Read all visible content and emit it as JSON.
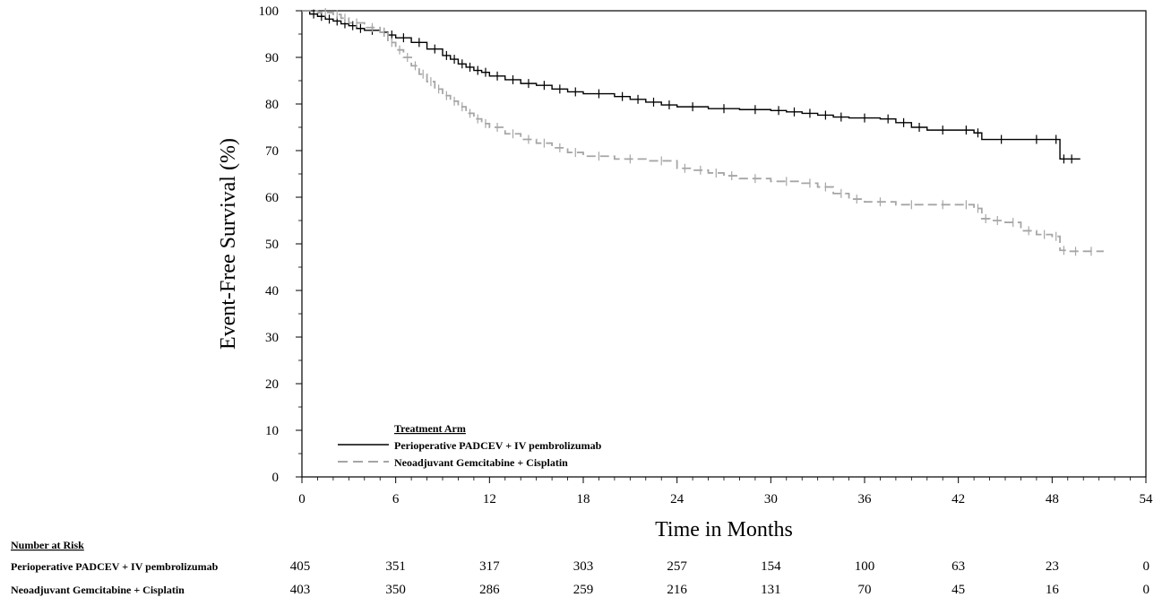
{
  "chart_data": {
    "type": "line",
    "xlabel": "Time in Months",
    "ylabel": "Event-Free Survival (%)",
    "xlim": [
      0,
      54
    ],
    "ylim": [
      0,
      100
    ],
    "xticks": [
      0,
      6,
      12,
      18,
      24,
      30,
      36,
      42,
      48,
      54
    ],
    "yticks": [
      0,
      10,
      20,
      30,
      40,
      50,
      60,
      70,
      80,
      90,
      100
    ],
    "grid": false,
    "legend": {
      "title": "Treatment Arm",
      "placement": "bottom-left"
    },
    "series": [
      {
        "name": "Perioperative PADCEV + IV pembrolizumab",
        "color": "#000000",
        "style": "solid",
        "step": true,
        "x": [
          0,
          0.5,
          1,
          1.5,
          2,
          2.5,
          3,
          3.5,
          4,
          5,
          5.5,
          6,
          7,
          8,
          9,
          9.5,
          10,
          10.5,
          11,
          11.5,
          12,
          13,
          14,
          15,
          16,
          17,
          18,
          20,
          21,
          22,
          23,
          24,
          26,
          28,
          30,
          31,
          32,
          33,
          34,
          35,
          37,
          38,
          39,
          40,
          42,
          43,
          43.5,
          46,
          48,
          48.5,
          49,
          49.5
        ],
        "y": [
          100,
          99.3,
          98.8,
          98.2,
          97.8,
          97.2,
          96.8,
          96.2,
          95.8,
          95.4,
          94.8,
          94.2,
          93.2,
          91.8,
          90.4,
          89.6,
          88.6,
          87.9,
          87.2,
          86.8,
          86.0,
          85.2,
          84.4,
          84.0,
          83.2,
          82.6,
          82.2,
          81.6,
          81.0,
          80.4,
          79.8,
          79.4,
          79.0,
          78.8,
          78.6,
          78.3,
          78.0,
          77.6,
          77.2,
          77.0,
          76.8,
          76.0,
          75.0,
          74.4,
          74.4,
          73.8,
          72.4,
          72.4,
          72.4,
          68.2,
          68.2,
          68.2
        ]
      },
      {
        "name": "Neoadjuvant Gemcitabine + Cisplatin",
        "color": "#a6a6a6",
        "style": "dashed",
        "step": true,
        "x": [
          0,
          1,
          2,
          2.5,
          3,
          4,
          5,
          5.5,
          6,
          6.5,
          7,
          7.5,
          8,
          8.5,
          9,
          9.5,
          10,
          10.5,
          11,
          11.5,
          12,
          13,
          14,
          15,
          16,
          17,
          18,
          20,
          22,
          24,
          25,
          26,
          27,
          28,
          30,
          32,
          33,
          34,
          35,
          36,
          38,
          40,
          42,
          43,
          43.5,
          44,
          45,
          46,
          47,
          48,
          48.5,
          49,
          50,
          51
        ],
        "y": [
          100,
          99.6,
          99.2,
          98.4,
          97.4,
          96.4,
          95.4,
          93.2,
          91.6,
          90.0,
          88.2,
          86.4,
          84.8,
          83.2,
          81.8,
          80.6,
          79.4,
          78.0,
          76.8,
          75.8,
          75.0,
          73.6,
          72.4,
          71.6,
          70.6,
          69.6,
          68.8,
          68.2,
          67.8,
          66.2,
          65.8,
          65.2,
          64.6,
          64.0,
          63.4,
          63.0,
          62.2,
          60.8,
          59.6,
          59.0,
          58.4,
          58.4,
          58.4,
          57.6,
          55.4,
          55.0,
          54.6,
          52.8,
          52.0,
          51.6,
          48.6,
          48.4,
          48.4,
          48.4
        ]
      }
    ]
  },
  "risk_table": {
    "title": "Number  at Risk",
    "times": [
      0,
      6,
      12,
      18,
      24,
      30,
      36,
      42,
      48,
      54
    ],
    "rows": [
      {
        "label": "Perioperative PADCEV + IV pembrolizumab",
        "values": [
          "405",
          "351",
          "317",
          "303",
          "257",
          "154",
          "100",
          "63",
          "23",
          "0"
        ]
      },
      {
        "label": "Neoadjuvant Gemcitabine + Cisplatin",
        "values": [
          "403",
          "350",
          "286",
          "259",
          "216",
          "131",
          "70",
          "45",
          "16",
          "0"
        ]
      }
    ]
  }
}
